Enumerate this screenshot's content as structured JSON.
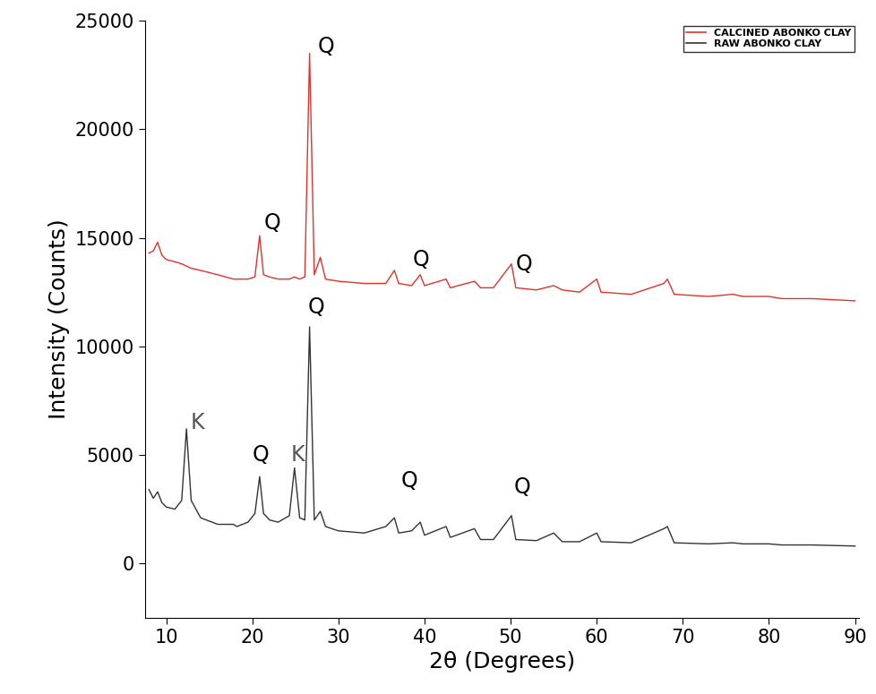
{
  "chart_data": {
    "type": "line",
    "x_label": "2θ (Degrees)",
    "y_label": "Intensity (Counts)",
    "x": [
      8,
      8.5,
      9,
      9.5,
      10,
      11,
      11.8,
      12.35,
      12.9,
      14,
      16,
      17.8,
      18.2,
      19.5,
      20.3,
      20.85,
      21.3,
      22,
      23,
      24.3,
      24.9,
      25.5,
      26.1,
      26.65,
      27.2,
      27.9,
      28.5,
      30,
      33,
      35.5,
      36.5,
      37,
      38.5,
      39.5,
      40,
      42.5,
      43,
      45.8,
      46.5,
      48,
      50.1,
      50.6,
      53,
      55,
      56,
      58,
      60,
      60.5,
      64,
      67.8,
      68.2,
      69,
      73,
      75.8,
      77,
      80,
      81.5,
      85,
      90
    ],
    "series": [
      {
        "name": "CALCINED ABONKO CLAY",
        "color": "#e8302a",
        "values": [
          14300,
          14400,
          14800,
          14200,
          14000,
          13900,
          13800,
          13700,
          13600,
          13500,
          13300,
          13100,
          13100,
          13100,
          13200,
          15100,
          13300,
          13200,
          13100,
          13100,
          13200,
          13100,
          13200,
          23500,
          13300,
          14100,
          13100,
          13000,
          12900,
          12900,
          13500,
          12900,
          12800,
          13300,
          12800,
          13100,
          12700,
          13000,
          12700,
          12700,
          13800,
          12700,
          12600,
          12800,
          12600,
          12500,
          13100,
          12500,
          12400,
          12900,
          13100,
          12400,
          12300,
          12400,
          12300,
          12300,
          12200,
          12200,
          12100
        ]
      },
      {
        "name": "RAW ABONKO CLAY",
        "color": "#333333",
        "values": [
          3400,
          3000,
          3300,
          2800,
          2600,
          2500,
          2900,
          6200,
          2900,
          2100,
          1800,
          1800,
          1700,
          1900,
          2300,
          4000,
          2300,
          2000,
          1900,
          2200,
          4400,
          2100,
          2000,
          10900,
          2000,
          2400,
          1700,
          1500,
          1400,
          1700,
          2100,
          1400,
          1500,
          1900,
          1300,
          1700,
          1200,
          1600,
          1100,
          1100,
          2200,
          1100,
          1050,
          1400,
          1000,
          1000,
          1400,
          1000,
          950,
          1600,
          1700,
          950,
          900,
          950,
          900,
          900,
          850,
          850,
          800
        ]
      }
    ],
    "annotations": [
      {
        "text": "Q",
        "x": 28.6,
        "y": 23800,
        "color": "#000000"
      },
      {
        "text": "Q",
        "x": 22.3,
        "y": 15700,
        "color": "#000000"
      },
      {
        "text": "Q",
        "x": 39.6,
        "y": 14000,
        "color": "#000000"
      },
      {
        "text": "Q",
        "x": 51.6,
        "y": 13800,
        "color": "#000000"
      },
      {
        "text": "Q",
        "x": 27.4,
        "y": 11800,
        "color": "#000000"
      },
      {
        "text": "K",
        "x": 13.6,
        "y": 6500,
        "color": "#555555"
      },
      {
        "text": "Q",
        "x": 21.0,
        "y": 5000,
        "color": "#000000"
      },
      {
        "text": "K",
        "x": 25.3,
        "y": 5000,
        "color": "#555555"
      },
      {
        "text": "Q",
        "x": 38.2,
        "y": 3800,
        "color": "#000000"
      },
      {
        "text": "Q",
        "x": 51.3,
        "y": 3500,
        "color": "#000000"
      }
    ],
    "xlim": [
      7.5,
      90.5
    ],
    "ylim": [
      -2500,
      25000
    ],
    "xticks": [
      10,
      20,
      30,
      40,
      50,
      60,
      70,
      80,
      90
    ],
    "yticks": [
      0,
      5000,
      10000,
      15000,
      20000,
      25000
    ],
    "legend": "upper right",
    "grid": false
  }
}
